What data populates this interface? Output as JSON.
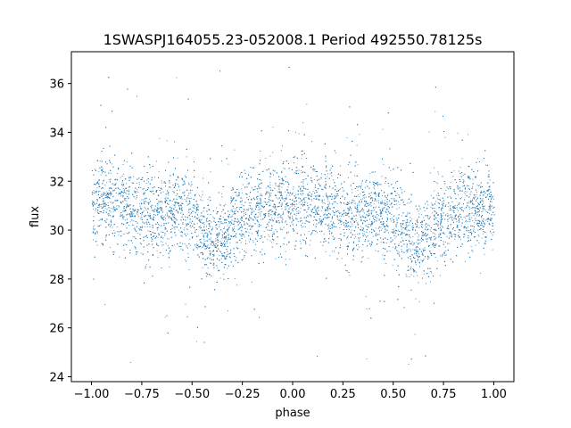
{
  "chart_data": {
    "type": "scatter",
    "title": "1SWASPJ164055.23-052008.1 Period 492550.78125s",
    "xlabel": "phase",
    "ylabel": "flux",
    "xlim": [
      -1.1,
      1.1
    ],
    "ylim": [
      23.8,
      37.3
    ],
    "x_ticks": [
      -1.0,
      -0.75,
      -0.5,
      -0.25,
      0.0,
      0.25,
      0.5,
      0.75,
      1.0
    ],
    "x_tick_labels": [
      "−1.00",
      "−0.75",
      "−0.50",
      "−0.25",
      "0.00",
      "0.25",
      "0.50",
      "0.75",
      "1.00"
    ],
    "y_ticks": [
      24,
      26,
      28,
      30,
      32,
      34,
      36
    ],
    "y_tick_labels": [
      "24",
      "26",
      "28",
      "30",
      "32",
      "34",
      "36"
    ],
    "grid": false,
    "point_color": "#1f77b4",
    "n_points_approx": 9000,
    "phase_range": [
      -1.0,
      1.0
    ],
    "median_flux": 30.8,
    "flux_scatter_sd": 1.0,
    "flux_range": [
      24.5,
      37.0
    ],
    "profile": [
      {
        "phase": -1.0,
        "flux": 31.0
      },
      {
        "phase": -0.95,
        "flux": 31.4
      },
      {
        "phase": -0.9,
        "flux": 31.1
      },
      {
        "phase": -0.8,
        "flux": 30.9
      },
      {
        "phase": -0.7,
        "flux": 30.6
      },
      {
        "phase": -0.6,
        "flux": 30.8
      },
      {
        "phase": -0.5,
        "flux": 30.6
      },
      {
        "phase": -0.45,
        "flux": 30.0
      },
      {
        "phase": -0.4,
        "flux": 29.4
      },
      {
        "phase": -0.35,
        "flux": 29.6
      },
      {
        "phase": -0.3,
        "flux": 30.2
      },
      {
        "phase": -0.2,
        "flux": 30.8
      },
      {
        "phase": -0.1,
        "flux": 30.9
      },
      {
        "phase": 0.0,
        "flux": 31.0
      },
      {
        "phase": 0.05,
        "flux": 31.4
      },
      {
        "phase": 0.1,
        "flux": 31.1
      },
      {
        "phase": 0.2,
        "flux": 30.9
      },
      {
        "phase": 0.3,
        "flux": 30.6
      },
      {
        "phase": 0.4,
        "flux": 30.8
      },
      {
        "phase": 0.5,
        "flux": 30.6
      },
      {
        "phase": 0.55,
        "flux": 30.0
      },
      {
        "phase": 0.6,
        "flux": 29.4
      },
      {
        "phase": 0.65,
        "flux": 29.6
      },
      {
        "phase": 0.7,
        "flux": 30.2
      },
      {
        "phase": 0.8,
        "flux": 30.8
      },
      {
        "phase": 0.9,
        "flux": 30.9
      },
      {
        "phase": 1.0,
        "flux": 31.0
      }
    ]
  }
}
